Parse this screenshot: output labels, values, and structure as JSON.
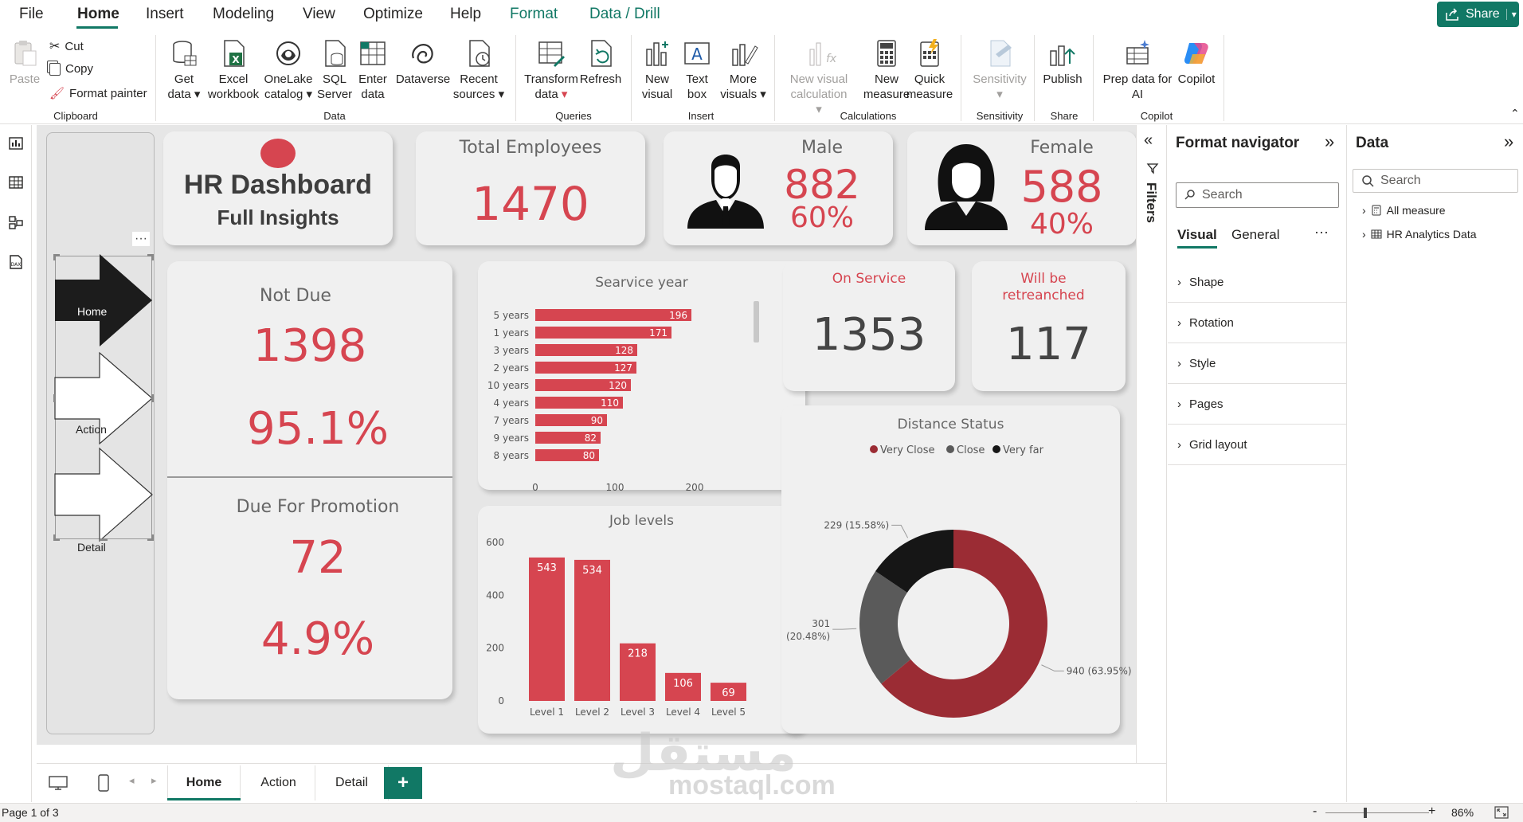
{
  "menu": {
    "tabs": [
      "File",
      "Home",
      "Insert",
      "Modeling",
      "View",
      "Optimize",
      "Help",
      "Format",
      "Data / Drill"
    ],
    "active": "Home",
    "share_label": "Share"
  },
  "ribbon": {
    "clipboard": {
      "paste": "Paste",
      "cut": "Cut",
      "copy": "Copy",
      "format_painter": "Format painter",
      "label": "Clipboard"
    },
    "data": {
      "get_data": [
        "Get",
        "data"
      ],
      "excel": [
        "Excel",
        "workbook"
      ],
      "onelake": [
        "OneLake",
        "catalog"
      ],
      "sql": [
        "SQL",
        "Server"
      ],
      "enter": [
        "Enter",
        "data"
      ],
      "dataverse": "Dataverse",
      "recent": [
        "Recent",
        "sources"
      ],
      "label": "Data"
    },
    "queries": {
      "transform": [
        "Transform",
        "data"
      ],
      "refresh": "Refresh",
      "label": "Queries"
    },
    "insert": {
      "new_visual": [
        "New",
        "visual"
      ],
      "text_box": [
        "Text",
        "box"
      ],
      "more_visuals": [
        "More",
        "visuals"
      ],
      "label": "Insert"
    },
    "calculations": {
      "new_visual_calc": [
        "New visual",
        "calculation"
      ],
      "new_measure": [
        "New",
        "measure"
      ],
      "quick_measure": [
        "Quick",
        "measure"
      ],
      "label": "Calculations"
    },
    "sensitivity": {
      "sensitivity": "Sensitivity",
      "label": "Sensitivity"
    },
    "share": {
      "publish": "Publish",
      "label": "Share"
    },
    "copilot": {
      "prep": [
        "Prep data for",
        "AI"
      ],
      "copilot": "Copilot",
      "label": "Copilot"
    }
  },
  "nav": {
    "home": "Home",
    "action": "Action",
    "detail": "Detail",
    "more": "···"
  },
  "title_card": {
    "line1": "HR Dashboard",
    "line2": "Full Insights"
  },
  "kpis": {
    "total_employees": {
      "title": "Total Employees",
      "value": "1470"
    },
    "male": {
      "title": "Male",
      "value": "882",
      "pct": "60%"
    },
    "female": {
      "title": "Female",
      "value": "588",
      "pct": "40%"
    },
    "not_due": {
      "title": "Not Due",
      "value": "1398",
      "pct": "95.1%"
    },
    "due_promotion": {
      "title": "Due For Promotion",
      "value": "72",
      "pct": "4.9%"
    },
    "on_service": {
      "title": "On Service",
      "value": "1353"
    },
    "retrenched": {
      "title": "Will be retreanched",
      "value": "117"
    }
  },
  "chart_data": [
    {
      "type": "bar",
      "orientation": "horizontal",
      "title": "Searvice year",
      "categories": [
        "5 years",
        "1 years",
        "3 years",
        "2 years",
        "10 years",
        "4 years",
        "7 years",
        "9 years",
        "8 years"
      ],
      "values": [
        196,
        171,
        128,
        127,
        120,
        110,
        90,
        82,
        80
      ],
      "xlim": [
        0,
        200
      ],
      "xticks": [
        0,
        100,
        200
      ],
      "color": "#d64550"
    },
    {
      "type": "bar",
      "title": "Job levels",
      "categories": [
        "Level 1",
        "Level 2",
        "Level 3",
        "Level 4",
        "Level 5"
      ],
      "values": [
        543,
        534,
        218,
        106,
        69
      ],
      "ylim": [
        0,
        600
      ],
      "yticks": [
        0,
        200,
        400,
        600
      ],
      "color": "#d64550"
    },
    {
      "type": "pie",
      "donut": true,
      "title": "Distance Status",
      "legend": [
        "Very Close",
        "Close",
        "Very far"
      ],
      "slices": [
        {
          "name": "Very Close",
          "value": 940,
          "label": "940 (63.95%)",
          "color": "#9b2c34"
        },
        {
          "name": "Close",
          "value": 301,
          "label": "301 (20.48%)",
          "color": "#5a5a5a"
        },
        {
          "name": "Very far",
          "value": 229,
          "label": "229 (15.58%)",
          "color": "#161616"
        }
      ],
      "legend_position": "top"
    }
  ],
  "filters_label": "Filters",
  "format_pane": {
    "title": "Format navigator",
    "search_placeholder": "Search",
    "tabs": [
      "Visual",
      "General"
    ],
    "more": "···",
    "sections": [
      "Shape",
      "Rotation",
      "Style",
      "Pages",
      "Grid layout"
    ]
  },
  "data_pane": {
    "title": "Data",
    "search_placeholder": "Search",
    "items": [
      "All measure",
      "HR Analytics Data"
    ]
  },
  "pages": {
    "tabs": [
      "Home",
      "Action",
      "Detail"
    ],
    "active": "Home",
    "add": "+"
  },
  "status": {
    "page_info": "Page 1 of 3",
    "zoom": "86%",
    "zoom_minus": "-",
    "zoom_plus": "+"
  },
  "watermark": {
    "arabic": "مستقل",
    "latin": "mostaql.com"
  },
  "colors": {
    "accent": "#117865",
    "kpi_red": "#d64550",
    "dark_red": "#9b2c34",
    "card_bg": "#f0f0f0"
  }
}
